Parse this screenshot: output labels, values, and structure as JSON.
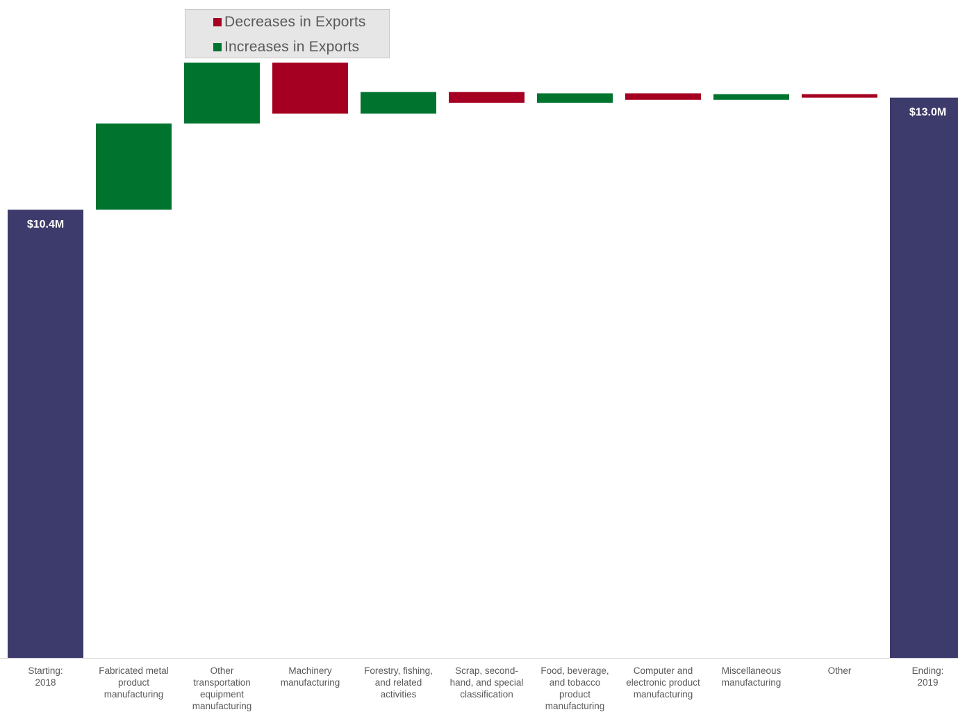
{
  "colors": {
    "total": "#3c3b6b",
    "decrease": "#a50021",
    "increase": "#00742f",
    "axis": "#d0d0d0",
    "label_text": "#595959",
    "legend_bg": "#e6e6e6"
  },
  "legend": {
    "decrease_label": "Decreases in Exports",
    "increase_label": "Increases in Exports"
  },
  "chart_data": {
    "type": "waterfall",
    "unit": "$M",
    "ylim": [
      0,
      13.8
    ],
    "grid": false,
    "legend_position": "top-left",
    "categories": [
      [
        "Starting:",
        "2018"
      ],
      [
        "Fabricated metal",
        "product",
        "manufacturing"
      ],
      [
        "Other",
        "transportation",
        "equipment",
        "manufacturing"
      ],
      [
        "Machinery",
        "manufacturing"
      ],
      [
        "Forestry, fishing,",
        "and related",
        "activities"
      ],
      [
        "Scrap, second-",
        "hand, and special",
        "classification"
      ],
      [
        "Food, beverage,",
        "and tobacco",
        "product",
        "manufacturing"
      ],
      [
        "Computer and",
        "electronic product",
        "manufacturing"
      ],
      [
        "Miscellaneous",
        "manufacturing"
      ],
      [
        "Other"
      ],
      [
        "Ending:",
        "2019"
      ]
    ],
    "bars": [
      {
        "kind": "total",
        "value": 10.4,
        "label": "$10.4M"
      },
      {
        "kind": "increase",
        "value": 2.0
      },
      {
        "kind": "increase",
        "value": 1.41
      },
      {
        "kind": "decrease",
        "value": -1.18
      },
      {
        "kind": "increase",
        "value": 0.5
      },
      {
        "kind": "decrease",
        "value": -0.25
      },
      {
        "kind": "increase",
        "value": 0.22
      },
      {
        "kind": "decrease",
        "value": -0.15
      },
      {
        "kind": "increase",
        "value": 0.13
      },
      {
        "kind": "decrease",
        "value": -0.08
      },
      {
        "kind": "total",
        "value": 13.0,
        "label": "$13.0M"
      }
    ]
  }
}
